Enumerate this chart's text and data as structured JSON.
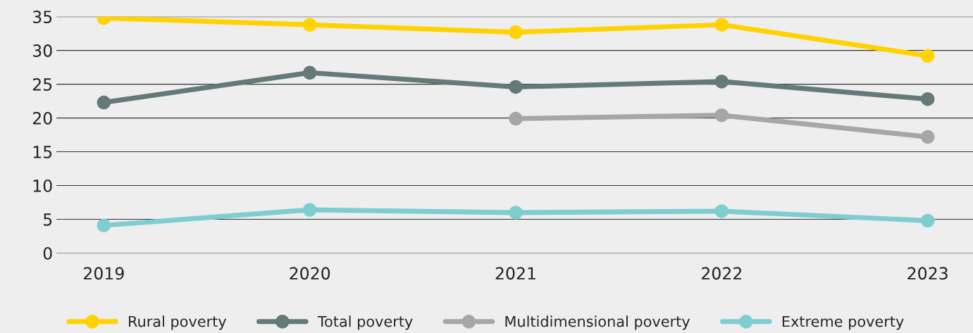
{
  "chart_data": {
    "type": "line",
    "categories": [
      "2019",
      "2020",
      "2021",
      "2022",
      "2023"
    ],
    "series": [
      {
        "name": "Rural poverty",
        "color": "#ffd200",
        "values": [
          34.8,
          33.8,
          32.7,
          33.8,
          29.2
        ]
      },
      {
        "name": "Total poverty",
        "color": "#647a78",
        "values": [
          22.3,
          26.7,
          24.6,
          25.4,
          22.8
        ]
      },
      {
        "name": "Multidimensional poverty",
        "color": "#a6a6a9",
        "values": [
          null,
          null,
          19.9,
          20.4,
          17.2
        ]
      },
      {
        "name": "Extreme poverty",
        "color": "#7ecdd0",
        "values": [
          4.1,
          6.4,
          6.0,
          6.2,
          4.8
        ]
      }
    ],
    "ylim": [
      0,
      35
    ],
    "yticks": [
      0,
      5,
      10,
      15,
      20,
      25,
      30,
      35
    ],
    "grid": "y",
    "legend": "bottom",
    "marker": "circle",
    "line_style": "solid"
  }
}
